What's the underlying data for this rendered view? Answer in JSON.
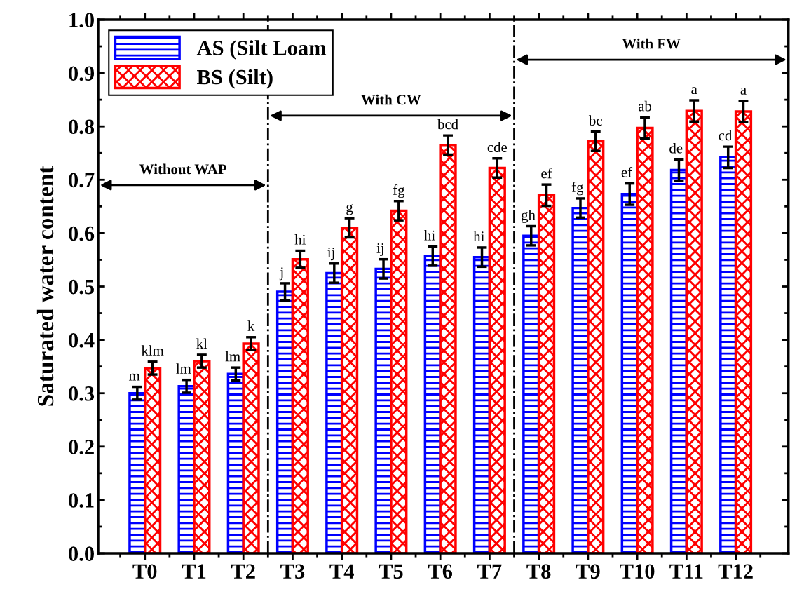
{
  "chart_data": {
    "type": "bar",
    "ylabel": "Saturated water content",
    "categories": [
      "T0",
      "T1",
      "T2",
      "T3",
      "T4",
      "T5",
      "T6",
      "T7",
      "T8",
      "T9",
      "T10",
      "T11",
      "T12"
    ],
    "series": [
      {
        "name": "AS (Silt Loam",
        "color": "#0000ff",
        "values": [
          0.3,
          0.313,
          0.336,
          0.49,
          0.525,
          0.533,
          0.557,
          0.555,
          0.595,
          0.647,
          0.673,
          0.718,
          0.742
        ],
        "errors": [
          0.012,
          0.012,
          0.012,
          0.016,
          0.018,
          0.018,
          0.018,
          0.018,
          0.018,
          0.018,
          0.02,
          0.02,
          0.02
        ],
        "value_labels": [
          "m",
          "lm",
          "lm",
          "j",
          "ij",
          "ij",
          "hi",
          "hi",
          "gh",
          "fg",
          "ef",
          "de",
          "cd"
        ]
      },
      {
        "name": "BS (Silt)",
        "color": "#ff0000",
        "values": [
          0.347,
          0.36,
          0.393,
          0.551,
          0.61,
          0.642,
          0.765,
          0.722,
          0.671,
          0.772,
          0.797,
          0.829,
          0.828
        ],
        "errors": [
          0.012,
          0.012,
          0.012,
          0.016,
          0.018,
          0.018,
          0.018,
          0.018,
          0.02,
          0.018,
          0.02,
          0.02,
          0.02
        ],
        "value_labels": [
          "klm",
          "kl",
          "k",
          "hi",
          "g",
          "fg",
          "bcd",
          "cde",
          "ef",
          "bc",
          "ab",
          "a",
          "a"
        ]
      }
    ],
    "ylim": [
      0,
      1.0
    ],
    "yticks": [
      {
        "value": 0,
        "label": "0.0"
      },
      0.1,
      0.2,
      0.3,
      0.4,
      0.5,
      0.6,
      0.7,
      0.8,
      0.9,
      {
        "value": 1,
        "label": "1.0"
      }
    ],
    "annotations": [
      "Without WAP",
      "With CW",
      "With FW"
    ],
    "grid": false,
    "legend": "top left"
  }
}
